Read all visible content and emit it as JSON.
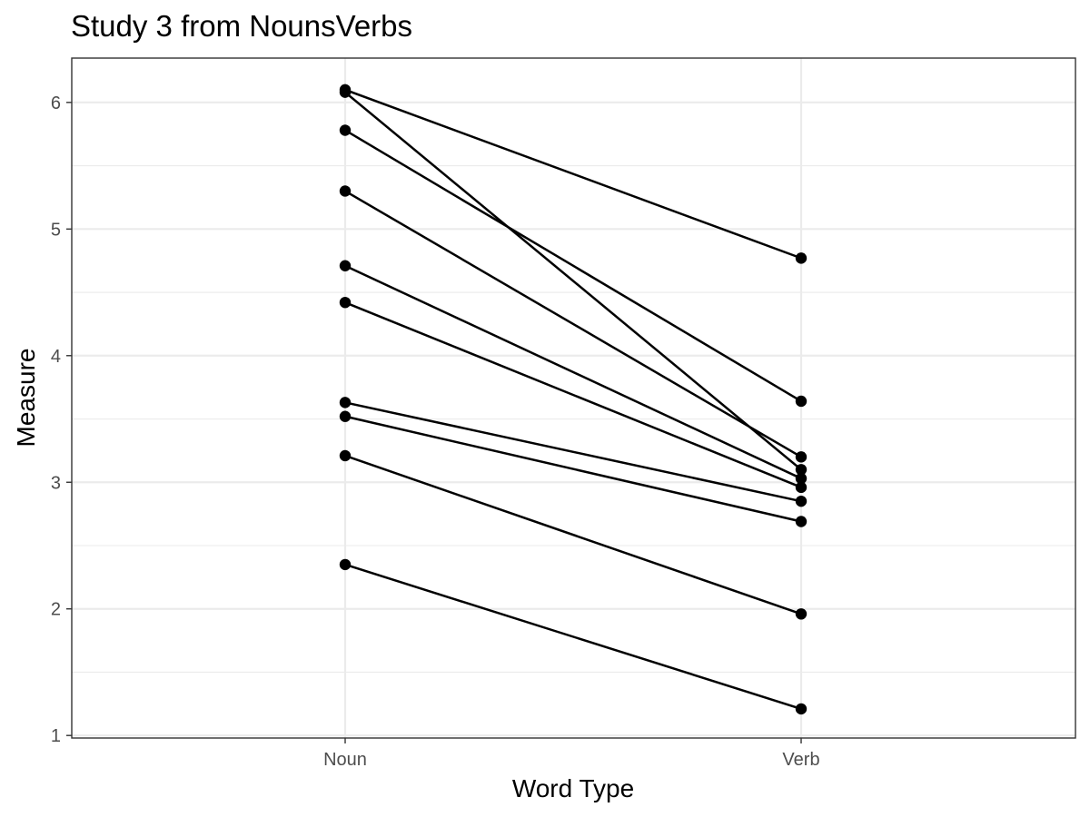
{
  "chart_data": {
    "type": "line",
    "title": "Study 3 from NounsVerbs",
    "xlabel": "Word Type",
    "ylabel": "Measure",
    "categories": [
      "Noun",
      "Verb"
    ],
    "ylim": [
      0.98,
      6.35
    ],
    "yticks": [
      1,
      2,
      3,
      4,
      5,
      6
    ],
    "grid": true,
    "series": [
      {
        "values": [
          6.1,
          4.77
        ]
      },
      {
        "values": [
          6.08,
          3.1
        ]
      },
      {
        "values": [
          5.78,
          3.64
        ]
      },
      {
        "values": [
          5.3,
          3.2
        ]
      },
      {
        "values": [
          4.71,
          3.03
        ]
      },
      {
        "values": [
          4.42,
          2.96
        ]
      },
      {
        "values": [
          3.63,
          2.85
        ]
      },
      {
        "values": [
          3.52,
          2.69
        ]
      },
      {
        "values": [
          3.21,
          1.96
        ]
      },
      {
        "values": [
          2.35,
          1.21
        ]
      }
    ]
  }
}
